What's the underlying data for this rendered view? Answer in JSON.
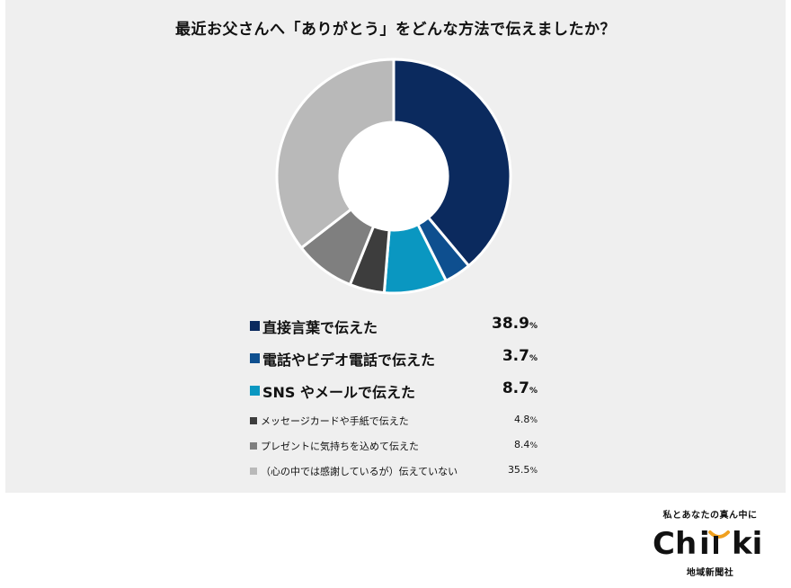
{
  "chart_data": {
    "type": "pie",
    "title": "最近お父さんへ「ありがとう」をどんな方法で伝えましたか？",
    "unit": "%",
    "categories": [
      "直接言葉で伝えた",
      "電話やビデオ電話で伝えた",
      "SNS やメールで伝えた",
      "メッセージカードや手紙で伝えた",
      "プレゼントに気持ちを込めて伝えた",
      "（心の中では感謝しているが）伝えていない"
    ],
    "values": [
      38.9,
      3.7,
      8.7,
      4.8,
      8.4,
      35.5
    ],
    "value_labels": [
      "38.9",
      "3.7",
      "8.7",
      "4.8",
      "8.4",
      "35.5"
    ],
    "colors": [
      "#0b2a5e",
      "#0e4f8f",
      "#0a97c1",
      "#3d3d3d",
      "#7f7f7f",
      "#b9b9b9"
    ],
    "emphasis": [
      "big",
      "big",
      "big",
      "small",
      "small",
      "small"
    ],
    "legend_placement": "bottom"
  },
  "logo": {
    "tagline": "私とあなたの真ん中に",
    "wordmark": "Chiiki",
    "org": "地域新聞社"
  }
}
